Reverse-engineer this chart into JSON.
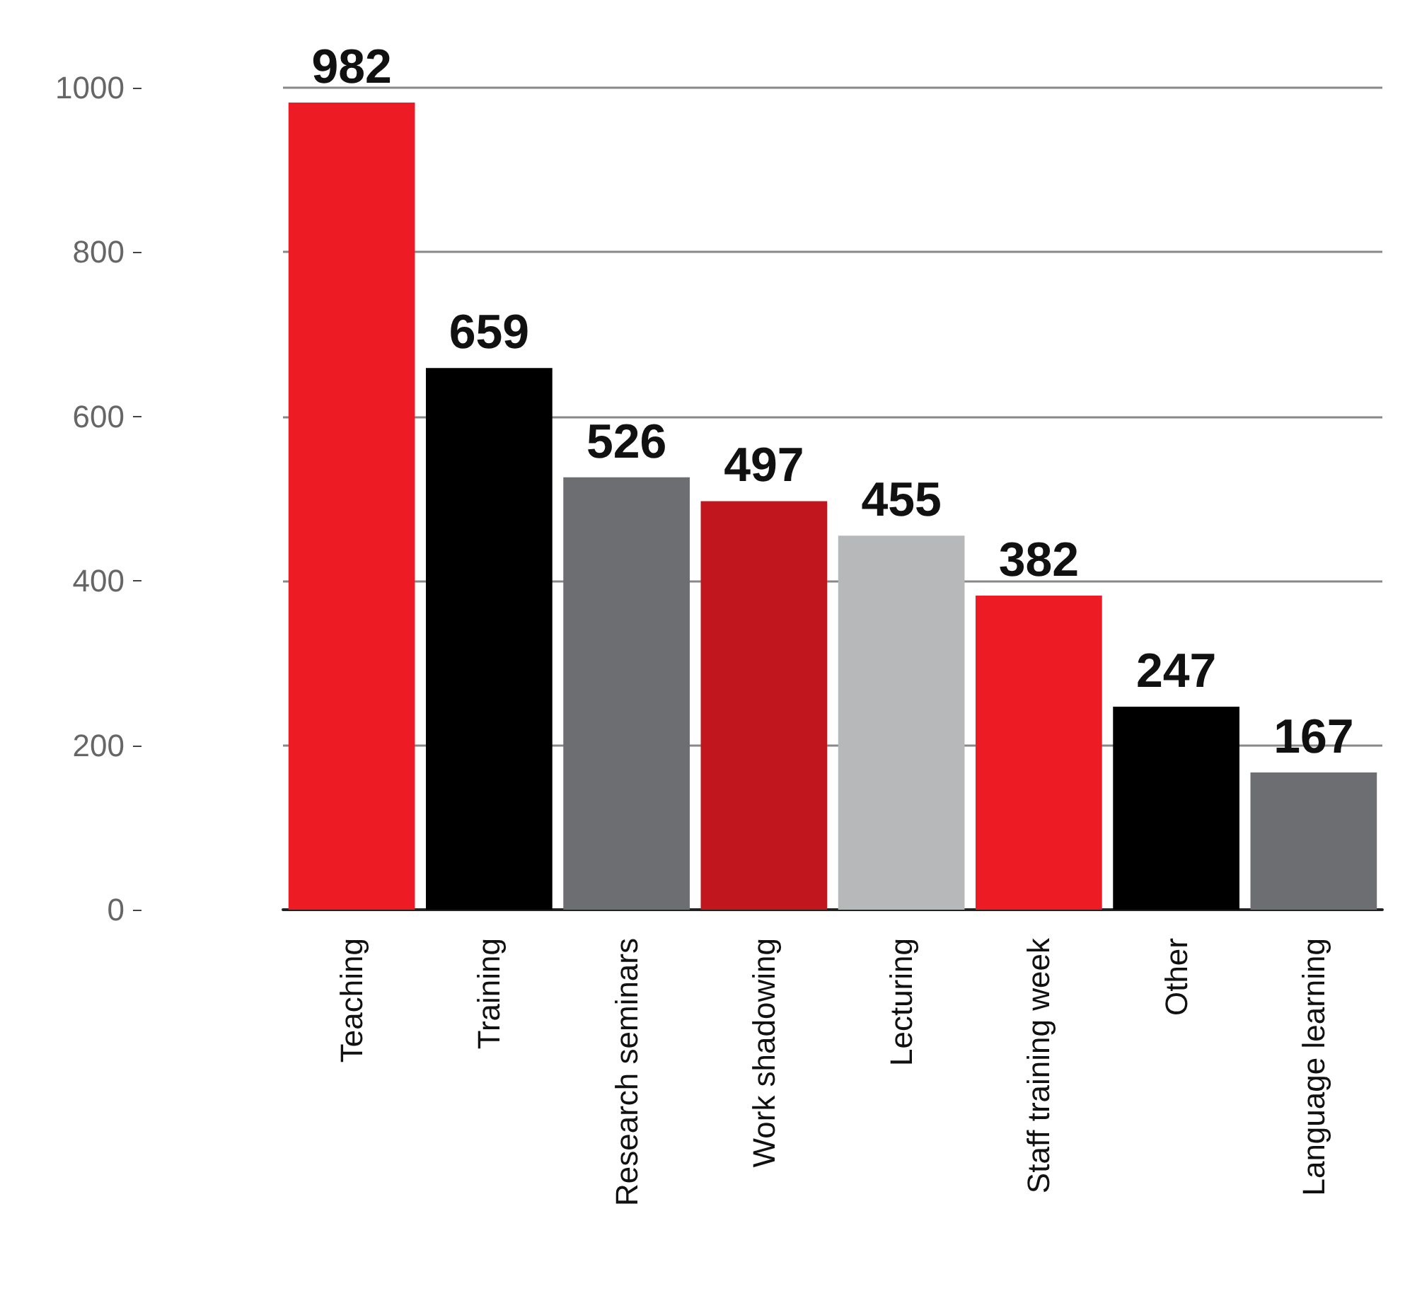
{
  "chart_data": {
    "type": "bar",
    "categories": [
      "Teaching",
      "Training",
      "Research seminars",
      "Work shadowing",
      "Lecturing",
      "Staff training week",
      "Other",
      "Language learning"
    ],
    "values": [
      982,
      659,
      526,
      497,
      455,
      382,
      247,
      167
    ],
    "colors": [
      "#ed1c24",
      "#000000",
      "#6d6e71",
      "#c1161e",
      "#b7b8ba",
      "#ed1c24",
      "#000000",
      "#6d6e71"
    ],
    "ylim": [
      0,
      1000
    ],
    "yticks": [
      0,
      200,
      400,
      600,
      800,
      1000
    ],
    "grid": "y",
    "data_labels": true
  }
}
